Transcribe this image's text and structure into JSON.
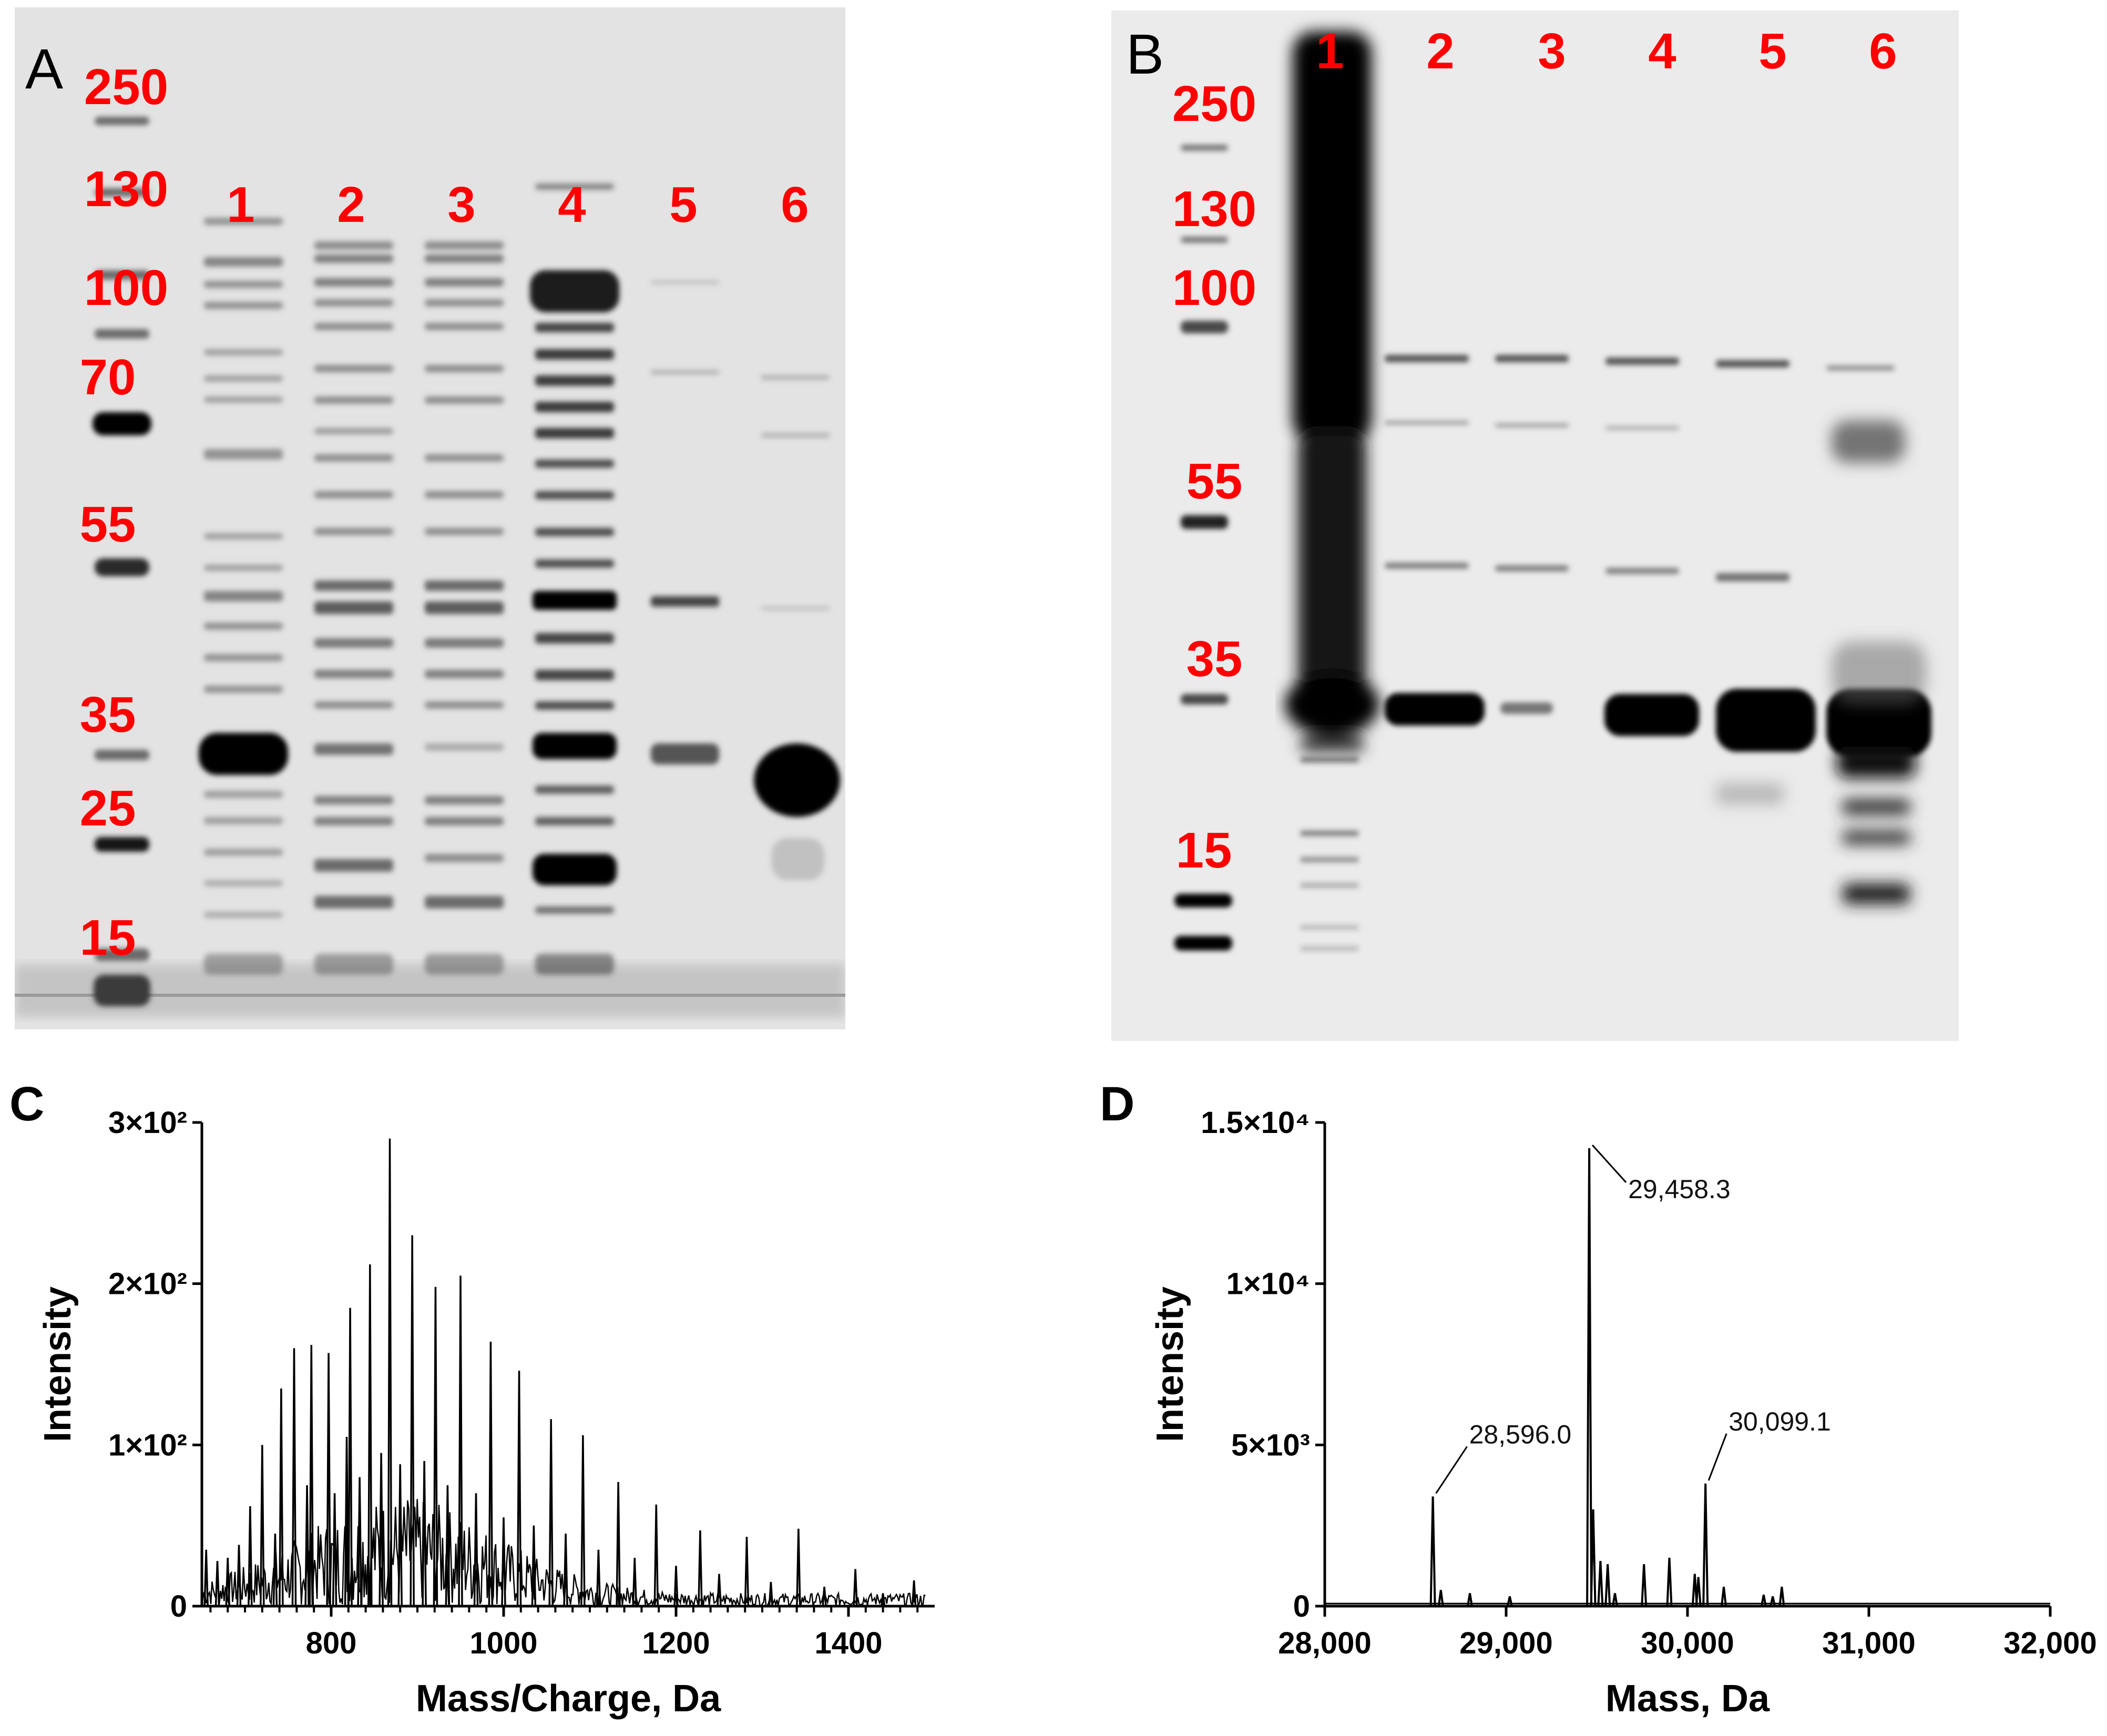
{
  "panels": {
    "A": {
      "label": "A",
      "markers": [
        "250",
        "130",
        "100",
        "70",
        "55",
        "35",
        "25",
        "15"
      ],
      "lanes": [
        "1",
        "2",
        "3",
        "4",
        "5",
        "6"
      ]
    },
    "B": {
      "label": "B",
      "markers": [
        "250",
        "130",
        "100",
        "55",
        "35",
        "15"
      ],
      "lanes": [
        "1",
        "2",
        "3",
        "4",
        "5",
        "6"
      ]
    },
    "C": {
      "label": "C"
    },
    "D": {
      "label": "D"
    }
  },
  "colors": {
    "annotation_red": "#ff0000",
    "gel_background_A": "#e4e4e4",
    "gel_background_B": "#ececec",
    "ink": "#000000"
  },
  "chart_data": [
    {
      "id": "C",
      "type": "line",
      "xlabel": "Mass/Charge, Da",
      "ylabel": "Intensity",
      "xlim": [
        650,
        1500
      ],
      "ylim": [
        0,
        300
      ],
      "xticks": [
        800,
        1000,
        1200,
        1400
      ],
      "xtick_labels": [
        "800",
        "1000",
        "1200",
        "1400"
      ],
      "yticks": [
        0,
        100,
        200,
        300
      ],
      "ytick_labels": [
        "0",
        "1×10²",
        "2×10²",
        "3×10²"
      ],
      "grid": false,
      "peaks": [
        {
          "x": 655,
          "y": 35
        },
        {
          "x": 668,
          "y": 28
        },
        {
          "x": 680,
          "y": 30
        },
        {
          "x": 693,
          "y": 38
        },
        {
          "x": 706,
          "y": 62
        },
        {
          "x": 720,
          "y": 100
        },
        {
          "x": 735,
          "y": 45
        },
        {
          "x": 742,
          "y": 135
        },
        {
          "x": 757,
          "y": 160
        },
        {
          "x": 772,
          "y": 75
        },
        {
          "x": 777,
          "y": 162
        },
        {
          "x": 797,
          "y": 157
        },
        {
          "x": 804,
          "y": 70
        },
        {
          "x": 818,
          "y": 105
        },
        {
          "x": 822,
          "y": 185
        },
        {
          "x": 833,
          "y": 80
        },
        {
          "x": 845,
          "y": 212
        },
        {
          "x": 858,
          "y": 95
        },
        {
          "x": 868,
          "y": 290
        },
        {
          "x": 880,
          "y": 88
        },
        {
          "x": 894,
          "y": 230
        },
        {
          "x": 908,
          "y": 90
        },
        {
          "x": 921,
          "y": 198
        },
        {
          "x": 935,
          "y": 75
        },
        {
          "x": 950,
          "y": 205
        },
        {
          "x": 968,
          "y": 70
        },
        {
          "x": 985,
          "y": 164
        },
        {
          "x": 1000,
          "y": 55
        },
        {
          "x": 1018,
          "y": 146
        },
        {
          "x": 1035,
          "y": 50
        },
        {
          "x": 1055,
          "y": 116
        },
        {
          "x": 1072,
          "y": 45
        },
        {
          "x": 1092,
          "y": 106
        },
        {
          "x": 1110,
          "y": 35
        },
        {
          "x": 1133,
          "y": 77
        },
        {
          "x": 1152,
          "y": 30
        },
        {
          "x": 1177,
          "y": 63
        },
        {
          "x": 1200,
          "y": 25
        },
        {
          "x": 1228,
          "y": 47
        },
        {
          "x": 1250,
          "y": 20
        },
        {
          "x": 1282,
          "y": 43
        },
        {
          "x": 1310,
          "y": 15
        },
        {
          "x": 1342,
          "y": 48
        },
        {
          "x": 1372,
          "y": 12
        },
        {
          "x": 1408,
          "y": 23
        },
        {
          "x": 1440,
          "y": 8
        },
        {
          "x": 1476,
          "y": 16
        }
      ]
    },
    {
      "id": "D",
      "type": "line",
      "xlabel": "Mass, Da",
      "ylabel": "Intensity",
      "xlim": [
        28000,
        32000
      ],
      "ylim": [
        0,
        15000
      ],
      "xticks": [
        28000,
        29000,
        30000,
        31000,
        32000
      ],
      "xtick_labels": [
        "28,000",
        "29,000",
        "30,000",
        "31,000",
        "32,000"
      ],
      "yticks": [
        0,
        5000,
        10000,
        15000
      ],
      "ytick_labels": [
        "0",
        "5×10³",
        "1×10⁴",
        "1.5×10⁴"
      ],
      "grid": false,
      "peaks": [
        {
          "x": 28596.0,
          "y": 3400
        },
        {
          "x": 28640,
          "y": 500
        },
        {
          "x": 28800,
          "y": 400
        },
        {
          "x": 29020,
          "y": 300
        },
        {
          "x": 29458.3,
          "y": 14200
        },
        {
          "x": 29480,
          "y": 3000
        },
        {
          "x": 29520,
          "y": 1400
        },
        {
          "x": 29560,
          "y": 1300
        },
        {
          "x": 29600,
          "y": 400
        },
        {
          "x": 29760,
          "y": 1300
        },
        {
          "x": 29900,
          "y": 1500
        },
        {
          "x": 30040,
          "y": 1000
        },
        {
          "x": 30060,
          "y": 900
        },
        {
          "x": 30099.1,
          "y": 3800
        },
        {
          "x": 30200,
          "y": 600
        },
        {
          "x": 30420,
          "y": 350
        },
        {
          "x": 30470,
          "y": 300
        },
        {
          "x": 30520,
          "y": 600
        }
      ],
      "annotations": [
        {
          "text": "28,596.0",
          "x": 28596.0,
          "y": 3400
        },
        {
          "text": "29,458.3",
          "x": 29458.3,
          "y": 14200
        },
        {
          "text": "30,099.1",
          "x": 30099.1,
          "y": 3800
        }
      ]
    }
  ]
}
